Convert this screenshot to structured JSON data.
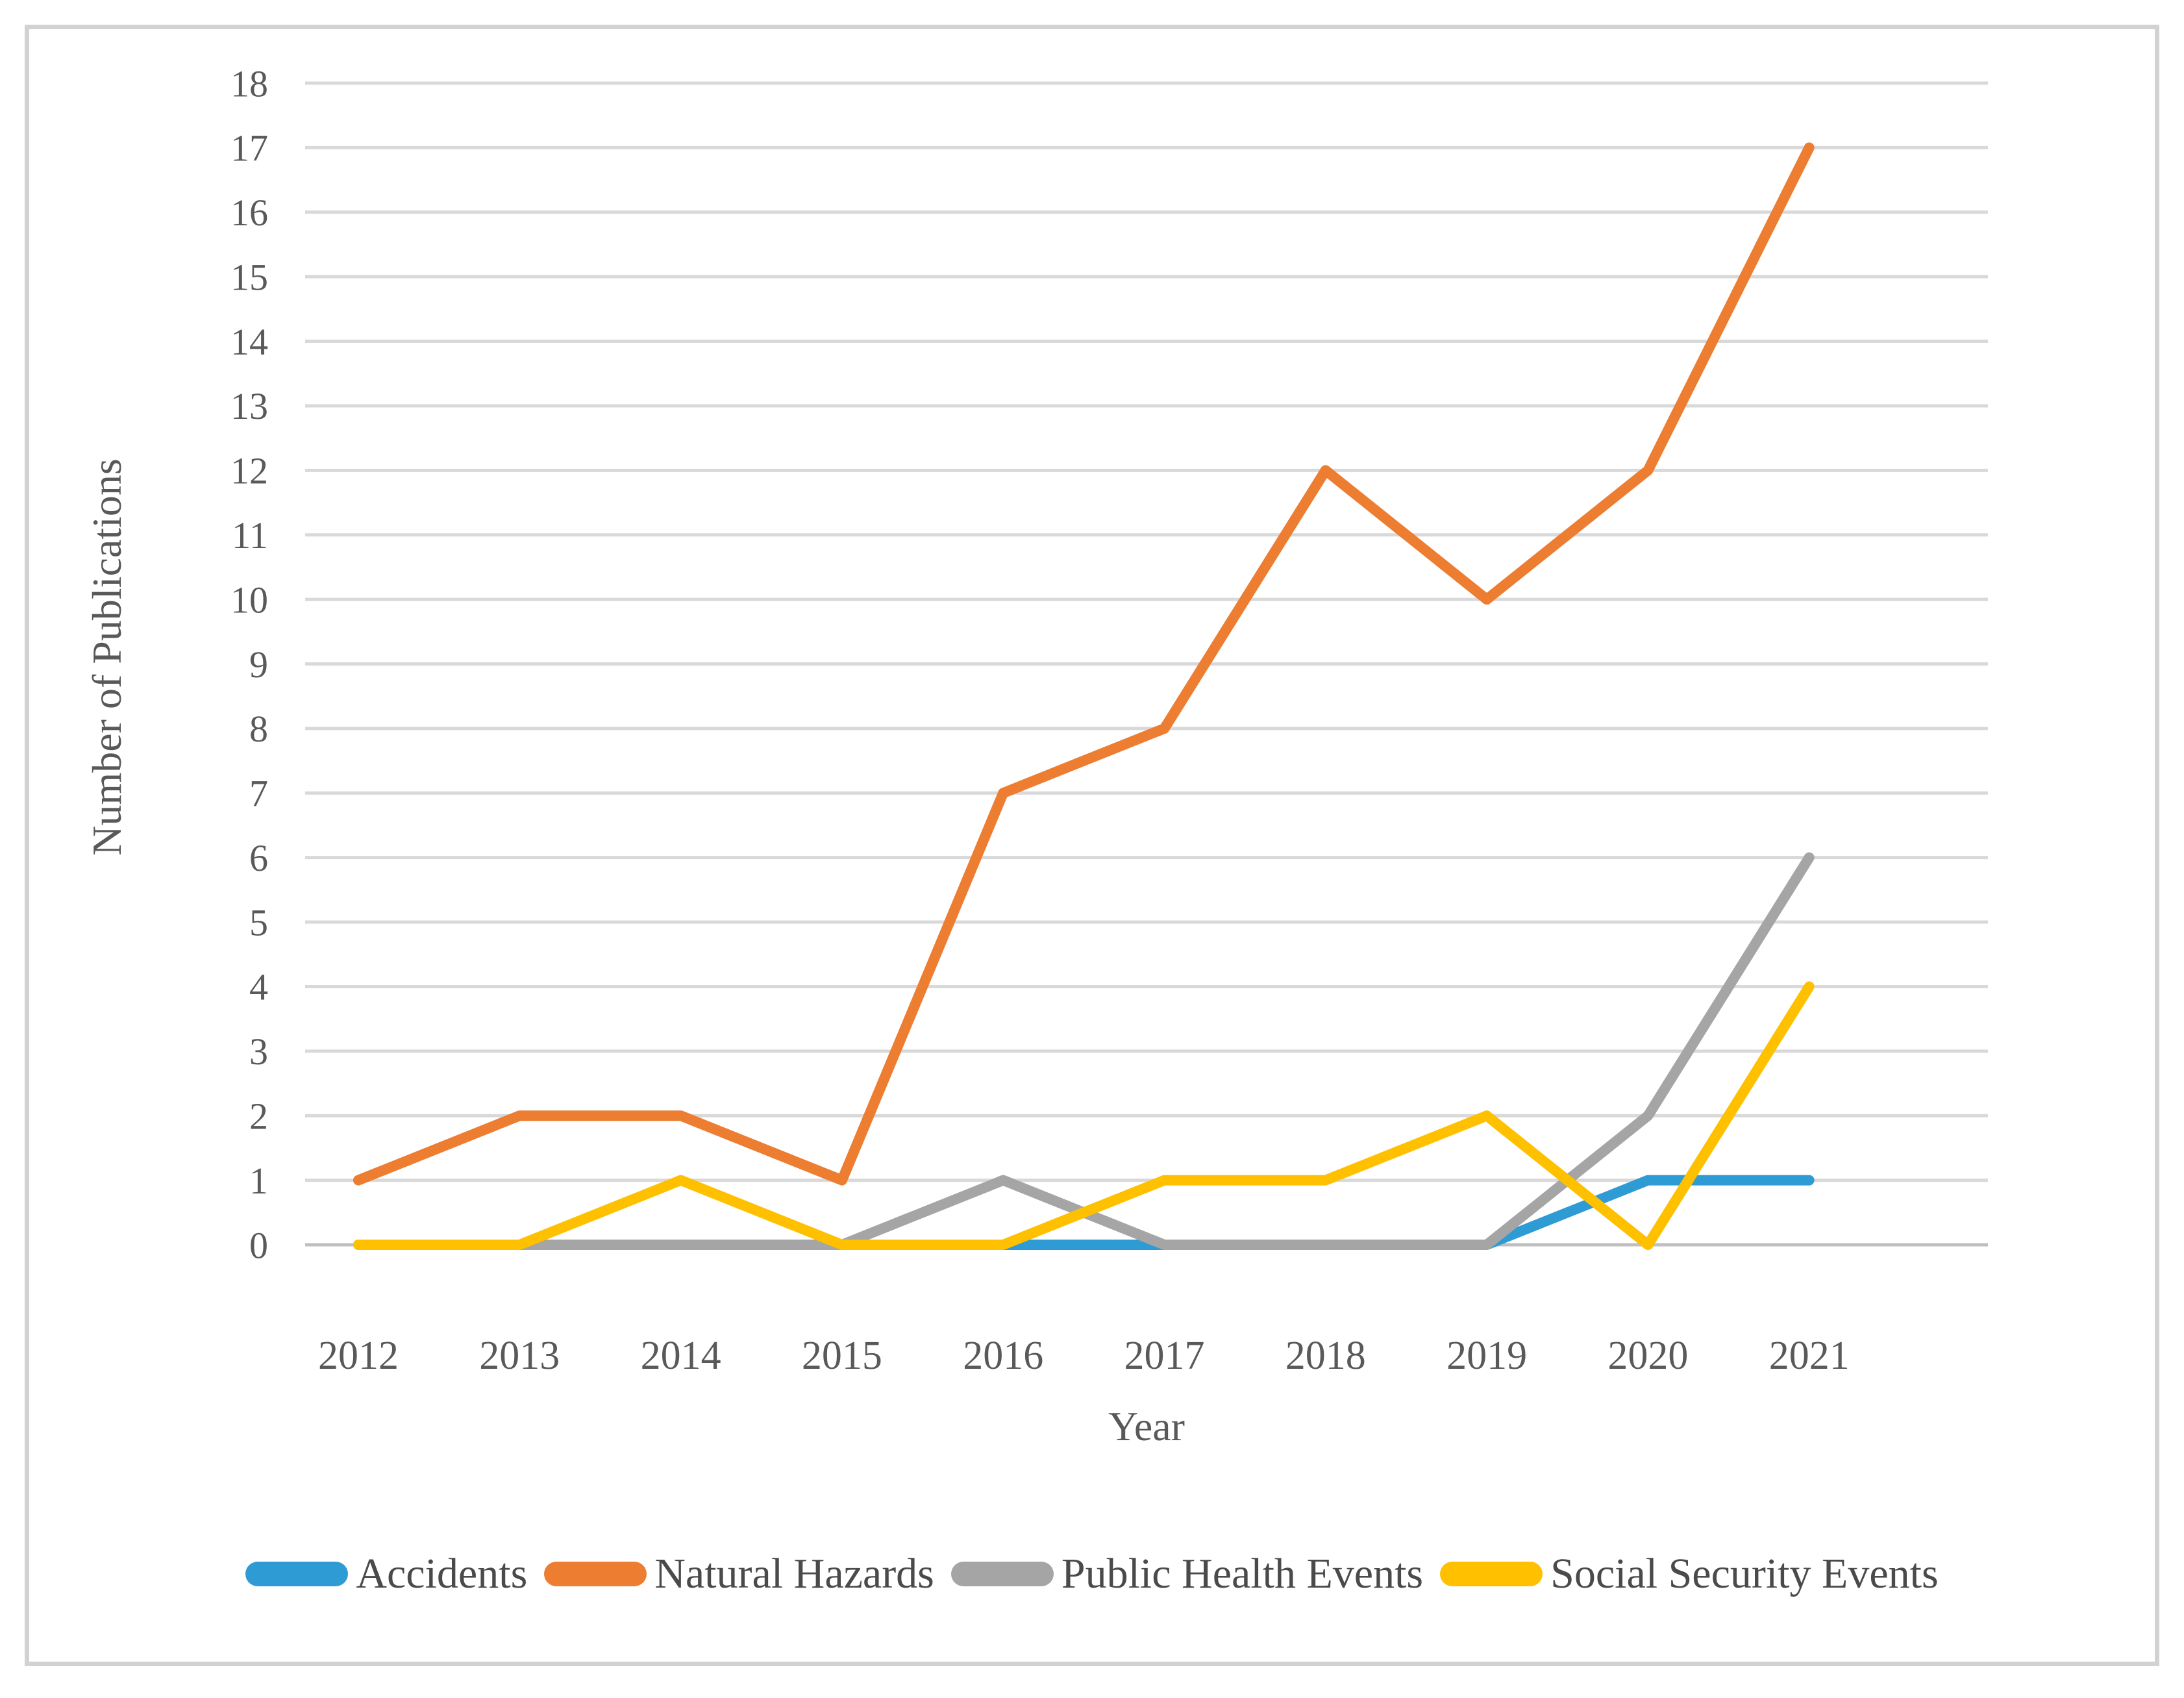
{
  "figure": {
    "background": "#ffffff",
    "border_color": "#d2d2d2"
  },
  "chart_data": {
    "type": "line",
    "title": "",
    "categories": [
      "2012",
      "2013",
      "2014",
      "2015",
      "2016",
      "2017",
      "2018",
      "2019",
      "2020",
      "2021"
    ],
    "series": [
      {
        "name": "Accidents",
        "color": "#2E9BD5",
        "values": [
          0,
          0,
          0,
          0,
          0,
          0,
          0,
          0,
          1,
          1
        ]
      },
      {
        "name": "Natural Hazards",
        "color": "#ED7D31",
        "values": [
          1,
          2,
          2,
          1,
          7,
          8,
          12,
          10,
          12,
          17
        ]
      },
      {
        "name": "Public Health Events",
        "color": "#A5A5A5",
        "values": [
          0,
          0,
          0,
          0,
          1,
          0,
          0,
          0,
          2,
          6
        ]
      },
      {
        "name": "Social Security Events",
        "color": "#FFC000",
        "values": [
          0,
          0,
          1,
          0,
          0,
          1,
          1,
          2,
          0,
          4
        ]
      }
    ],
    "xlabel": "Year",
    "ylabel": "Number of Publications",
    "ylim": [
      0,
      18
    ],
    "ytick_step": 1,
    "y_tick_labels": [
      "0",
      "1",
      "2",
      "3",
      "4",
      "5",
      "6",
      "7",
      "8",
      "9",
      "10",
      "11",
      "12",
      "13",
      "14",
      "15",
      "16",
      "17",
      "18"
    ],
    "grid": true,
    "gridline_color": "#D9D9D9",
    "axis_line_color": "#BFBFBF",
    "text_color": "#595959",
    "legend_position": "bottom"
  }
}
